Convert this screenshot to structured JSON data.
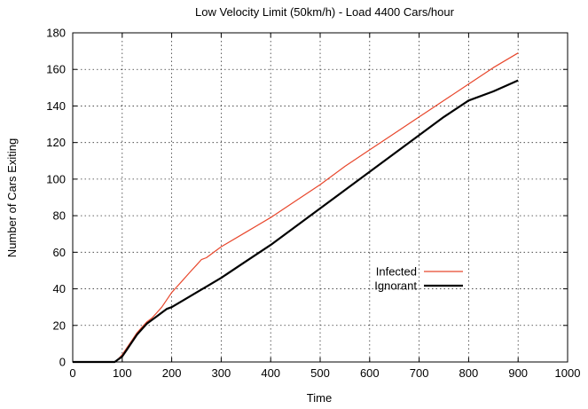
{
  "chart_data": {
    "type": "line",
    "title": "Low Velocity Limit (50km/h) - Load 4400 Cars/hour",
    "xlabel": "Time",
    "ylabel": "Number of Cars Exiting",
    "xlim": [
      0,
      1000
    ],
    "ylim": [
      0,
      180
    ],
    "xticks": [
      0,
      100,
      200,
      300,
      400,
      500,
      600,
      700,
      800,
      900,
      1000
    ],
    "yticks": [
      0,
      20,
      40,
      60,
      80,
      100,
      120,
      140,
      160,
      180
    ],
    "grid": true,
    "legend_position": "right-center",
    "series": [
      {
        "name": "Infected",
        "color": "#e8472c",
        "x": [
          0,
          85,
          90,
          100,
          110,
          120,
          130,
          140,
          150,
          160,
          170,
          180,
          190,
          200,
          210,
          220,
          230,
          240,
          250,
          260,
          270,
          300,
          350,
          400,
          450,
          500,
          550,
          600,
          650,
          700,
          750,
          800,
          850,
          900
        ],
        "y": [
          0,
          0,
          1,
          4,
          8,
          12,
          16,
          19,
          22,
          24,
          27,
          30,
          34,
          38,
          41,
          44,
          47,
          50,
          53,
          56,
          57,
          63,
          71,
          79,
          88,
          97,
          107,
          116,
          125,
          134,
          143,
          152,
          161,
          169
        ]
      },
      {
        "name": "Ignorant",
        "color": "#000000",
        "x": [
          0,
          85,
          90,
          100,
          110,
          120,
          130,
          140,
          150,
          160,
          170,
          180,
          190,
          200,
          225,
          250,
          275,
          300,
          350,
          400,
          450,
          500,
          550,
          600,
          650,
          700,
          750,
          800,
          850,
          900
        ],
        "y": [
          0,
          0,
          1,
          3,
          7,
          11,
          15,
          18,
          21,
          23,
          25,
          27,
          29,
          30,
          34,
          38,
          42,
          46,
          55,
          64,
          74,
          84,
          94,
          104,
          114,
          124,
          134,
          143,
          148,
          154
        ]
      }
    ]
  }
}
